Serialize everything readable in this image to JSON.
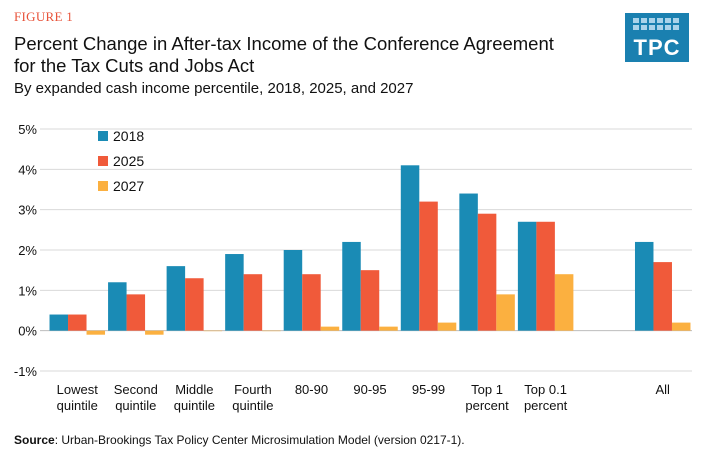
{
  "header": {
    "figure_label": "FIGURE 1",
    "title": "Percent Change in After-tax Income of the Conference Agreement for the Tax Cuts and Jobs Act",
    "subtitle": "By expanded cash income percentile, 2018, 2025, and 2027"
  },
  "logo": {
    "text": "TPC",
    "color": "#1a80b0"
  },
  "source": {
    "label": "Source",
    "text": ": Urban-Brookings Tax Policy Center Microsimulation Model (version 0217-1)."
  },
  "chart_data": {
    "type": "bar",
    "title": "Percent Change in After-tax Income of the Conference Agreement for the Tax Cuts and Jobs Act",
    "subtitle": "By expanded cash income percentile, 2018, 2025, and 2027",
    "categories": [
      [
        "Lowest",
        "quintile"
      ],
      [
        "Second",
        "quintile"
      ],
      [
        "Middle",
        "quintile"
      ],
      [
        "Fourth",
        "quintile"
      ],
      [
        "80-90"
      ],
      [
        "90-95"
      ],
      [
        "95-99"
      ],
      [
        "Top 1",
        "percent"
      ],
      [
        "Top 0.1",
        "percent"
      ],
      [],
      [
        "All"
      ]
    ],
    "series": [
      {
        "name": "2018",
        "color": "#1a8bb5",
        "values": [
          0.4,
          1.2,
          1.6,
          1.9,
          2.0,
          2.2,
          4.1,
          3.4,
          2.7,
          null,
          2.2
        ]
      },
      {
        "name": "2025",
        "color": "#f05a3a",
        "values": [
          0.4,
          0.9,
          1.3,
          1.4,
          1.4,
          1.5,
          3.2,
          2.9,
          2.7,
          null,
          1.7
        ]
      },
      {
        "name": "2027",
        "color": "#fbb040",
        "values": [
          -0.1,
          -0.1,
          0.0,
          0.0,
          0.1,
          0.1,
          0.2,
          0.9,
          1.4,
          null,
          0.2
        ]
      }
    ],
    "yticks": [
      "5%",
      "4%",
      "3%",
      "2%",
      "1%",
      "0%",
      "-1%"
    ],
    "ylim": [
      -1,
      5
    ],
    "xlabel": "",
    "ylabel": "",
    "legend": "top-left",
    "grid": true
  }
}
